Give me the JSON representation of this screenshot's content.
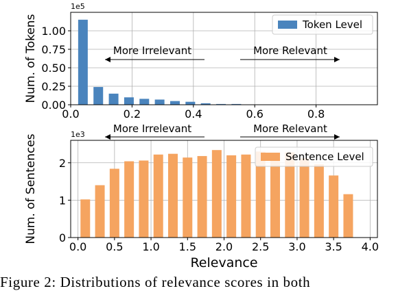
{
  "chart_data": [
    {
      "type": "bar",
      "series": [
        {
          "name": "Token Level",
          "color": "#4a84bd"
        }
      ],
      "x": [
        0.04,
        0.09,
        0.14,
        0.19,
        0.24,
        0.29,
        0.34,
        0.39,
        0.44,
        0.49,
        0.54
      ],
      "values": [
        1.15,
        0.24,
        0.15,
        0.1,
        0.08,
        0.07,
        0.05,
        0.04,
        0.02,
        0.01,
        0.01
      ],
      "ylabel": "Num. of Tokens",
      "xlabel": "",
      "scale_label": "1e5",
      "xlim": [
        0.0,
        1.0
      ],
      "ylim": [
        0.0,
        1.25
      ],
      "xticks": [
        "0.0",
        "0.2",
        "0.4",
        "0.6",
        "0.8"
      ],
      "yticks": [
        "0.00",
        "0.25",
        "0.50",
        "0.75",
        "1.00"
      ],
      "legend": "top-right",
      "grid": true,
      "annotations": [
        "More Irrelevant",
        "More Relevant"
      ]
    },
    {
      "type": "bar",
      "series": [
        {
          "name": "Sentence Level",
          "color": "#f5a460"
        }
      ],
      "x": [
        0.1,
        0.3,
        0.5,
        0.7,
        0.9,
        1.1,
        1.3,
        1.5,
        1.7,
        1.9,
        2.1,
        2.3,
        2.5,
        2.7,
        2.9,
        3.1,
        3.3,
        3.5,
        3.7
      ],
      "values": [
        1.02,
        1.4,
        1.84,
        2.04,
        2.06,
        2.22,
        2.24,
        2.14,
        2.18,
        2.34,
        2.2,
        2.22,
        2.3,
        2.12,
        2.28,
        2.12,
        1.96,
        1.66,
        1.16
      ],
      "ylabel": "Num. of Sentences",
      "xlabel": "Relevance",
      "scale_label": "1e3",
      "xlim": [
        -0.1,
        4.1
      ],
      "ylim": [
        0,
        2.6
      ],
      "xticks": [
        "0.0",
        "0.5",
        "1.0",
        "1.5",
        "2.0",
        "2.5",
        "3.0",
        "3.5",
        "4.0"
      ],
      "yticks": [
        "0",
        "1",
        "2"
      ],
      "legend": "top-right",
      "grid": true,
      "annotations": [
        "More Irrelevant",
        "More Relevant"
      ]
    }
  ],
  "caption": "Figure 2:  Distributions  of  relevance  scores  in  both"
}
